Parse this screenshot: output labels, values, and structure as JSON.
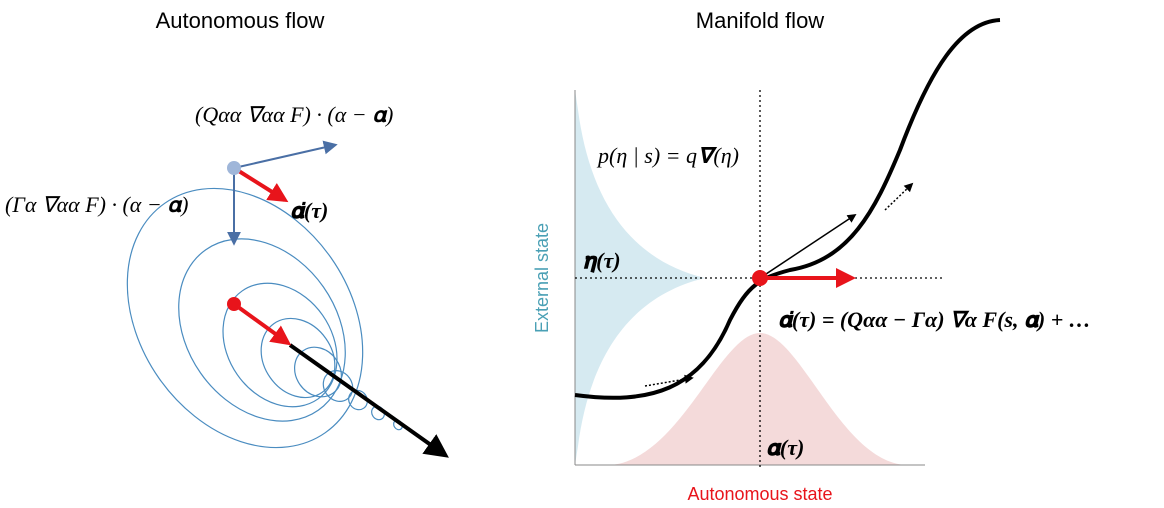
{
  "left": {
    "title": "Autonomous flow",
    "solenoidal_term": "(Qαα ∇αα F) · (α − 𝛂)",
    "gradient_term": "(Γα ∇αα F) · (α − 𝛂)",
    "velocity_label": "𝛂̇(τ)"
  },
  "right": {
    "title": "Manifold flow",
    "density_label": "p(η | s) = q𝛁(η)",
    "y_axis_label": "External state",
    "external_label": "𝛈(τ)",
    "equation": "𝛂̇(τ) = (Qαα − Γα) ∇α F(s, 𝛂) + …",
    "autonomous_label": "𝛂(τ)",
    "x_axis_label": "Autonomous state"
  }
}
